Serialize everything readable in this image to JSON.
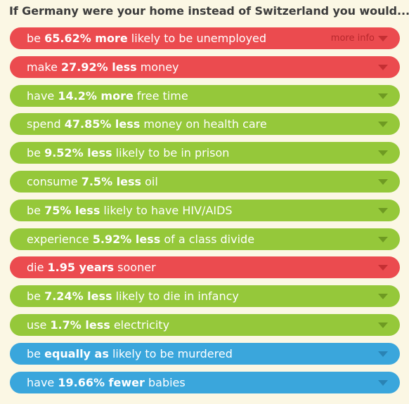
{
  "heading": "If Germany were your home instead of Switzerland you would...",
  "more_info": "more info",
  "colors": {
    "red": "#eb4b4f",
    "green": "#95c83a",
    "blue": "#3aa6dc"
  },
  "rows": [
    {
      "color": "red",
      "pre": "be ",
      "bold": "65.62% more",
      "post": " likely to be unemployed",
      "more": true
    },
    {
      "color": "red",
      "pre": "make ",
      "bold": "27.92% less",
      "post": " money"
    },
    {
      "color": "green",
      "pre": "have ",
      "bold": "14.2% more",
      "post": " free time"
    },
    {
      "color": "green",
      "pre": "spend ",
      "bold": "47.85% less",
      "post": " money on health care"
    },
    {
      "color": "green",
      "pre": "be ",
      "bold": "9.52% less",
      "post": " likely to be in prison"
    },
    {
      "color": "green",
      "pre": "consume ",
      "bold": "7.5% less",
      "post": " oil"
    },
    {
      "color": "green",
      "pre": "be ",
      "bold": "75% less",
      "post": " likely to have HIV/AIDS"
    },
    {
      "color": "green",
      "pre": "experience ",
      "bold": "5.92% less",
      "post": " of a class divide"
    },
    {
      "color": "red",
      "pre": "die ",
      "bold": "1.95 years",
      "post": " sooner"
    },
    {
      "color": "green",
      "pre": "be ",
      "bold": "7.24% less",
      "post": " likely to die in infancy"
    },
    {
      "color": "green",
      "pre": "use ",
      "bold": "1.7% less",
      "post": " electricity"
    },
    {
      "color": "blue",
      "pre": "be ",
      "bold": "equally as",
      "post": " likely to be murdered"
    },
    {
      "color": "blue",
      "pre": "have ",
      "bold": "19.66% fewer",
      "post": " babies"
    }
  ]
}
